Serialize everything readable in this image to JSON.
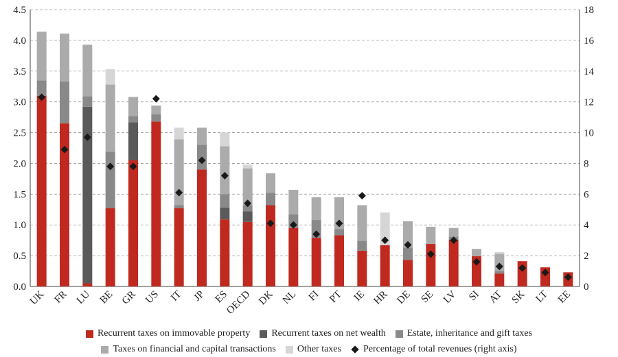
{
  "chart_data": {
    "type": "bar",
    "stacked": true,
    "categories": [
      "UK",
      "FR",
      "LU",
      "BE",
      "GR",
      "US",
      "IT",
      "JP",
      "ES",
      "OECD",
      "DK",
      "NL",
      "FI",
      "PT",
      "IE",
      "HR",
      "DE",
      "SE",
      "LV",
      "SI",
      "AT",
      "SK",
      "LT",
      "EE"
    ],
    "series": [
      {
        "name": "Recurrent taxes on immovable property",
        "color": "#c0291f",
        "values": [
          3.1,
          2.65,
          0.05,
          1.27,
          2.05,
          2.68,
          1.27,
          1.9,
          1.09,
          1.05,
          1.32,
          0.95,
          0.79,
          0.83,
          0.58,
          0.67,
          0.43,
          0.69,
          0.76,
          0.49,
          0.21,
          0.41,
          0.31,
          0.23
        ]
      },
      {
        "name": "Recurrent taxes on net wealth",
        "color": "#5a5a5a",
        "values": [
          0,
          0,
          2.87,
          0,
          0.62,
          0,
          0,
          0,
          0.19,
          0.17,
          0,
          0,
          0,
          0,
          0,
          0,
          0,
          0,
          0,
          0,
          0,
          0,
          0,
          0
        ]
      },
      {
        "name": "Estate, inheritance and gift taxes",
        "color": "#898989",
        "values": [
          0.25,
          0.68,
          0.17,
          0.92,
          0.1,
          0.12,
          0.05,
          0.4,
          0.22,
          0.1,
          0.2,
          0.22,
          0.29,
          0.1,
          0.16,
          0,
          0.2,
          0,
          0.05,
          0,
          0.04,
          0,
          0,
          0
        ]
      },
      {
        "name": "Taxes on financial and capital transactions",
        "color": "#ababab",
        "values": [
          0.79,
          0.78,
          0.84,
          1.09,
          0.31,
          0.14,
          1.07,
          0.28,
          0.78,
          0.6,
          0.32,
          0.4,
          0.37,
          0.52,
          0.58,
          0,
          0.43,
          0.28,
          0.14,
          0.12,
          0.28,
          0,
          0,
          0
        ]
      },
      {
        "name": "Other taxes",
        "color": "#d6d6d6",
        "values": [
          0,
          0,
          0,
          0.25,
          0,
          0,
          0.19,
          0,
          0.22,
          0.06,
          0,
          0,
          0,
          0,
          0,
          0.53,
          0,
          0,
          0,
          0,
          0.03,
          0,
          0,
          0
        ]
      }
    ],
    "percentage_series": {
      "name": "Percentage of total revenues (right axis)",
      "values": [
        12.3,
        8.9,
        9.7,
        7.8,
        7.8,
        12.2,
        6.1,
        8.2,
        7.2,
        5.4,
        4.1,
        4.0,
        3.4,
        4.1,
        5.9,
        3.0,
        2.7,
        2.1,
        3.0,
        1.6,
        1.3,
        1.2,
        0.9,
        0.6
      ]
    },
    "ylim": [
      0,
      4.5
    ],
    "y_ticks": [
      "0.0",
      "0.5",
      "1.0",
      "1.5",
      "2.0",
      "2.5",
      "3.0",
      "3.5",
      "4.0",
      "4.5"
    ],
    "y2lim": [
      0,
      18
    ],
    "y2_ticks": [
      "0",
      "2",
      "4",
      "6",
      "8",
      "10",
      "12",
      "14",
      "16",
      "18"
    ],
    "grid": "horizontal dashed",
    "legend_position": "bottom"
  },
  "legend": {
    "row1": [
      {
        "label": "Recurrent taxes on immovable property",
        "color": "#c0291f",
        "icon": "square-swatch"
      },
      {
        "label": "Recurrent taxes on net wealth",
        "color": "#5a5a5a",
        "icon": "square-swatch"
      },
      {
        "label": "Estate, inheritance and gift taxes",
        "color": "#898989",
        "icon": "square-swatch"
      }
    ],
    "row2": [
      {
        "label": "Taxes on financial and capital transactions",
        "color": "#ababab",
        "icon": "square-swatch"
      },
      {
        "label": "Other taxes",
        "color": "#d6d6d6",
        "icon": "square-swatch"
      },
      {
        "label": "Percentage of total revenues (right axis)",
        "color": "#1a1a1a",
        "icon": "diamond-marker"
      }
    ]
  }
}
